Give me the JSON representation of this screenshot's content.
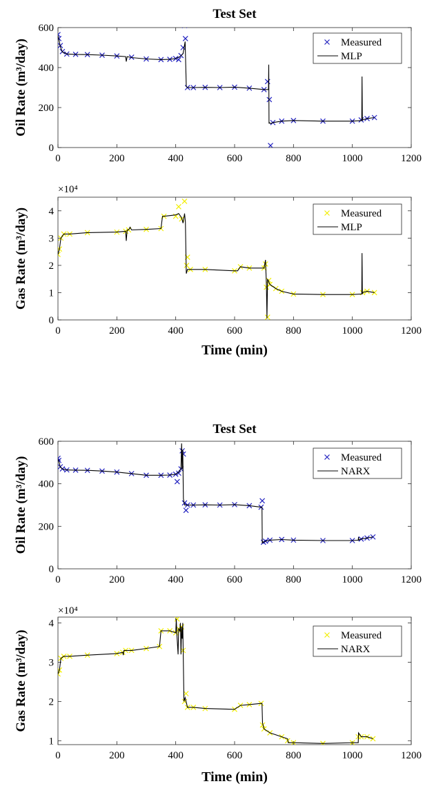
{
  "chart_data": [
    {
      "type": "line",
      "title": "Test Set",
      "xlabel": "",
      "ylabel": "Oil Rate (m³/day)",
      "xlim": [
        0,
        1200
      ],
      "ylim": [
        0,
        600
      ],
      "xticks": [
        "0",
        "200",
        "400",
        "600",
        "800",
        "1000",
        "1200"
      ],
      "yticks": [
        "0",
        "200",
        "400",
        "600"
      ],
      "legend_position": "top-right",
      "series": [
        {
          "name": "Measured",
          "marker": "x",
          "color": "#1f1fbf",
          "x": [
            0,
            3,
            8,
            15,
            30,
            60,
            100,
            150,
            200,
            250,
            300,
            350,
            380,
            400,
            410,
            418,
            425,
            430,
            433,
            440,
            460,
            500,
            550,
            600,
            650,
            700,
            712,
            718,
            722,
            730,
            760,
            800,
            900,
            1000,
            1030,
            1050,
            1075
          ],
          "y": [
            565,
            545,
            510,
            480,
            468,
            466,
            465,
            462,
            458,
            452,
            443,
            440,
            441,
            445,
            440,
            460,
            500,
            610,
            545,
            300,
            300,
            301,
            300,
            302,
            297,
            290,
            330,
            240,
            10,
            125,
            132,
            135,
            132,
            132,
            138,
            145,
            150
          ]
        },
        {
          "name": "MLP",
          "marker": "",
          "color": "#000000",
          "x": [
            0,
            3,
            8,
            15,
            30,
            60,
            100,
            150,
            200,
            230,
            232,
            235,
            250,
            300,
            350,
            380,
            400,
            415,
            425,
            432,
            436,
            440,
            460,
            500,
            550,
            600,
            650,
            700,
            715,
            716,
            717,
            718,
            722,
            730,
            760,
            800,
            900,
            1000,
            1032,
            1033,
            1034,
            1035,
            1050,
            1075
          ],
          "y": [
            560,
            540,
            505,
            478,
            468,
            466,
            465,
            462,
            458,
            455,
            430,
            455,
            450,
            443,
            440,
            441,
            445,
            455,
            470,
            530,
            305,
            300,
            300,
            301,
            300,
            302,
            297,
            290,
            290,
            415,
            120,
            125,
            120,
            125,
            132,
            135,
            132,
            132,
            135,
            355,
            135,
            138,
            145,
            150
          ]
        }
      ]
    },
    {
      "type": "line",
      "title": "",
      "xlabel": "Time (min)",
      "ylabel": "Gas Rate (m³/day)",
      "y_exponent": "×10⁴",
      "xlim": [
        0,
        1200
      ],
      "ylim": [
        0,
        4.5
      ],
      "xticks": [
        "0",
        "200",
        "400",
        "600",
        "800",
        "1000",
        "1200"
      ],
      "yticks": [
        "0",
        "1",
        "2",
        "3",
        "4"
      ],
      "legend_position": "top-right",
      "series": [
        {
          "name": "Measured",
          "marker": "x",
          "color": "#f2ee00",
          "x": [
            0,
            5,
            10,
            20,
            40,
            100,
            200,
            230,
            240,
            300,
            350,
            360,
            400,
            410,
            420,
            430,
            437,
            440,
            450,
            500,
            600,
            620,
            650,
            700,
            705,
            708,
            712,
            716,
            720,
            740,
            760,
            800,
            900,
            1000,
            1035,
            1050,
            1075
          ],
          "y": [
            2.4,
            2.6,
            3.0,
            3.15,
            3.15,
            3.2,
            3.22,
            3.25,
            3.3,
            3.32,
            3.35,
            3.8,
            3.8,
            4.15,
            3.7,
            4.35,
            2.0,
            2.3,
            1.85,
            1.85,
            1.8,
            1.95,
            1.9,
            1.9,
            2.05,
            1.2,
            0.1,
            1.45,
            1.3,
            1.15,
            1.05,
            0.95,
            0.93,
            0.93,
            1.0,
            1.05,
            1.0
          ]
        },
        {
          "name": "MLP",
          "marker": "",
          "color": "#000000",
          "x": [
            0,
            5,
            10,
            20,
            40,
            100,
            200,
            230,
            232,
            235,
            240,
            245,
            250,
            300,
            350,
            355,
            360,
            400,
            410,
            420,
            425,
            430,
            433,
            436,
            440,
            450,
            500,
            600,
            610,
            620,
            650,
            700,
            705,
            708,
            710,
            712,
            716,
            720,
            740,
            760,
            800,
            900,
            1000,
            1032,
            1033,
            1034,
            1035,
            1050,
            1075
          ],
          "y": [
            2.4,
            2.6,
            3.0,
            3.15,
            3.15,
            3.2,
            3.22,
            3.25,
            2.9,
            3.3,
            3.3,
            3.4,
            3.3,
            3.32,
            3.35,
            3.8,
            3.8,
            3.85,
            3.9,
            3.75,
            3.55,
            3.9,
            3.6,
            1.7,
            1.85,
            1.85,
            1.85,
            1.8,
            1.8,
            1.95,
            1.9,
            1.9,
            2.2,
            1.3,
            0.05,
            1.5,
            1.4,
            1.3,
            1.15,
            1.05,
            0.95,
            0.93,
            0.93,
            0.95,
            2.45,
            0.95,
            1.0,
            1.05,
            1.0
          ]
        }
      ]
    },
    {
      "type": "line",
      "title": "Test Set",
      "xlabel": "",
      "ylabel": "Oil Rate (m³/day)",
      "xlim": [
        0,
        1200
      ],
      "ylim": [
        0,
        600
      ],
      "xticks": [
        "0",
        "200",
        "400",
        "600",
        "800",
        "1000",
        "1200"
      ],
      "yticks": [
        "0",
        "200",
        "400",
        "600"
      ],
      "legend_position": "top-right",
      "series": [
        {
          "name": "Measured",
          "marker": "x",
          "color": "#1f1fbf",
          "x": [
            0,
            3,
            8,
            15,
            30,
            60,
            100,
            150,
            200,
            250,
            300,
            350,
            380,
            400,
            405,
            410,
            418,
            422,
            426,
            430,
            435,
            440,
            460,
            500,
            550,
            600,
            650,
            690,
            694,
            698,
            705,
            720,
            760,
            800,
            900,
            1000,
            1030,
            1050,
            1070
          ],
          "y": [
            520,
            510,
            480,
            470,
            465,
            464,
            463,
            460,
            455,
            448,
            440,
            440,
            441,
            445,
            410,
            450,
            470,
            555,
            540,
            310,
            275,
            300,
            300,
            301,
            300,
            302,
            297,
            290,
            320,
            125,
            130,
            135,
            138,
            135,
            133,
            133,
            140,
            145,
            150
          ]
        },
        {
          "name": "NARX",
          "marker": "",
          "color": "#000000",
          "x": [
            0,
            3,
            8,
            15,
            30,
            60,
            100,
            150,
            200,
            250,
            300,
            350,
            380,
            400,
            410,
            418,
            420,
            422,
            424,
            426,
            430,
            440,
            460,
            500,
            550,
            600,
            650,
            690,
            693,
            694,
            695,
            698,
            705,
            720,
            760,
            800,
            900,
            1000,
            1020,
            1021,
            1022,
            1030,
            1050,
            1070
          ],
          "y": [
            515,
            505,
            478,
            470,
            465,
            464,
            463,
            460,
            455,
            448,
            440,
            440,
            441,
            445,
            455,
            470,
            590,
            470,
            560,
            330,
            300,
            300,
            300,
            301,
            300,
            302,
            297,
            290,
            290,
            120,
            128,
            125,
            130,
            135,
            138,
            135,
            133,
            133,
            135,
            150,
            135,
            140,
            145,
            150
          ]
        }
      ]
    },
    {
      "type": "line",
      "title": "",
      "xlabel": "Time (min)",
      "ylabel": "Gas Rate (m³/day)",
      "y_exponent": "×10⁴",
      "xlim": [
        0,
        1200
      ],
      "ylim": [
        0.9,
        4.15
      ],
      "xticks": [
        "0",
        "200",
        "400",
        "600",
        "800",
        "1000",
        "1200"
      ],
      "yticks": [
        "1",
        "2",
        "3",
        "4"
      ],
      "legend_position": "top-right",
      "series": [
        {
          "name": "Measured",
          "marker": "x",
          "color": "#f2ee00",
          "x": [
            0,
            5,
            10,
            20,
            40,
            100,
            200,
            220,
            230,
            250,
            300,
            345,
            350,
            380,
            400,
            405,
            410,
            415,
            420,
            425,
            430,
            435,
            440,
            460,
            500,
            600,
            620,
            650,
            690,
            695,
            700,
            720,
            760,
            780,
            800,
            900,
            1000,
            1020,
            1030,
            1050,
            1070
          ],
          "y": [
            2.7,
            2.8,
            3.1,
            3.15,
            3.15,
            3.18,
            3.22,
            3.25,
            3.3,
            3.3,
            3.35,
            3.4,
            3.8,
            3.8,
            3.75,
            4.1,
            3.85,
            3.8,
            3.9,
            3.3,
            2.0,
            2.2,
            1.85,
            1.85,
            1.82,
            1.8,
            1.9,
            1.92,
            1.95,
            1.4,
            1.3,
            1.2,
            1.1,
            1.0,
            0.95,
            0.93,
            0.95,
            1.1,
            1.1,
            1.1,
            1.05
          ]
        },
        {
          "name": "NARX",
          "marker": "",
          "color": "#000000",
          "x": [
            0,
            5,
            10,
            20,
            40,
            100,
            200,
            220,
            222,
            224,
            230,
            250,
            300,
            345,
            350,
            380,
            400,
            402,
            404,
            408,
            410,
            414,
            416,
            418,
            420,
            422,
            424,
            428,
            432,
            440,
            460,
            500,
            600,
            620,
            650,
            690,
            693,
            695,
            700,
            720,
            760,
            780,
            782,
            800,
            900,
            1000,
            1020,
            1021,
            1030,
            1050,
            1070
          ],
          "y": [
            2.7,
            2.8,
            3.1,
            3.15,
            3.15,
            3.18,
            3.22,
            3.25,
            3.18,
            3.3,
            3.3,
            3.3,
            3.35,
            3.4,
            3.8,
            3.8,
            3.75,
            4.1,
            3.7,
            3.2,
            3.85,
            3.8,
            4.0,
            3.2,
            3.9,
            3.6,
            4.0,
            2.0,
            2.1,
            1.85,
            1.85,
            1.82,
            1.8,
            1.9,
            1.92,
            1.95,
            1.95,
            1.45,
            1.3,
            1.2,
            1.1,
            1.05,
            0.95,
            0.95,
            0.93,
            0.95,
            0.95,
            1.2,
            1.1,
            1.1,
            1.05
          ]
        }
      ]
    }
  ]
}
